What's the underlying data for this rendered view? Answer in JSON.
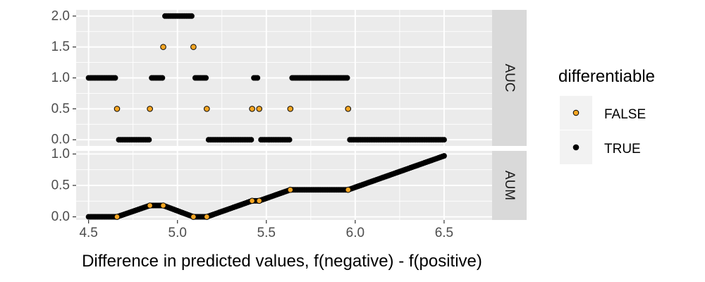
{
  "chart_data": {
    "type": "scatter",
    "xlabel": "Difference in predicted values, f(negative) - f(positive)",
    "ylabel": "",
    "xlim": [
      4.43,
      6.77
    ],
    "x_ticks": [
      4.5,
      5.0,
      5.5,
      6.0,
      6.5
    ],
    "x_tick_labels": [
      "4.5",
      "5.0",
      "5.5",
      "6.0",
      "6.5"
    ],
    "colors": {
      "panel_bg": "#ebebeb",
      "grid": "#ffffff",
      "strip_bg": "#d9d9d9",
      "false_fill": "#f5a623",
      "true_fill": "#000000"
    },
    "legend": {
      "title": "differentiable",
      "entries": [
        {
          "label": "FALSE",
          "key": "false"
        },
        {
          "label": "TRUE",
          "key": "true"
        }
      ]
    },
    "panels": [
      {
        "name": "AUC",
        "strip_label": "AUC",
        "ylim": [
          -0.1,
          2.1
        ],
        "y_ticks": [
          0,
          0.5,
          1,
          1.5,
          2
        ],
        "y_tick_labels": [
          "0.0",
          "0.5",
          "1.0",
          "1.5",
          "2.0"
        ],
        "breaks": [
          4.66,
          4.845,
          4.92,
          5.09,
          5.165,
          5.42,
          5.46,
          5.635,
          5.96
        ],
        "segments": [
          {
            "x0": 4.5,
            "x1": 4.66,
            "y": 1
          },
          {
            "x0": 4.66,
            "x1": 4.845,
            "y": 0
          },
          {
            "x0": 4.845,
            "x1": 4.92,
            "y": 1
          },
          {
            "x0": 4.92,
            "x1": 5.09,
            "y": 2
          },
          {
            "x0": 5.09,
            "x1": 5.165,
            "y": 1
          },
          {
            "x0": 5.165,
            "x1": 5.42,
            "y": 0
          },
          {
            "x0": 5.42,
            "x1": 5.46,
            "y": 1
          },
          {
            "x0": 5.46,
            "x1": 5.635,
            "y": 0
          },
          {
            "x0": 5.635,
            "x1": 5.96,
            "y": 1
          },
          {
            "x0": 5.96,
            "x1": 6.5,
            "y": 0
          }
        ],
        "false_points": [
          {
            "x": 4.66,
            "y": 0.5
          },
          {
            "x": 4.845,
            "y": 0.5
          },
          {
            "x": 4.92,
            "y": 1.5
          },
          {
            "x": 5.09,
            "y": 1.5
          },
          {
            "x": 5.165,
            "y": 0.5
          },
          {
            "x": 5.42,
            "y": 0.5
          },
          {
            "x": 5.46,
            "y": 0.5
          },
          {
            "x": 5.635,
            "y": 0.5
          },
          {
            "x": 5.96,
            "y": 0.5
          }
        ]
      },
      {
        "name": "AUM",
        "strip_label": "AUM",
        "ylim": [
          -0.05,
          1.05
        ],
        "y_ticks": [
          0,
          0.5,
          1
        ],
        "y_tick_labels": [
          "0.0",
          "0.5",
          "1.0"
        ],
        "breaks": [
          4.66,
          4.845,
          4.92,
          5.09,
          5.165,
          5.42,
          5.46,
          5.635,
          5.96
        ],
        "path": [
          {
            "x": 4.5,
            "y": 0
          },
          {
            "x": 4.66,
            "y": 0
          },
          {
            "x": 4.845,
            "y": 0.18
          },
          {
            "x": 4.92,
            "y": 0.18
          },
          {
            "x": 5.09,
            "y": 0
          },
          {
            "x": 5.165,
            "y": 0
          },
          {
            "x": 5.42,
            "y": 0.255
          },
          {
            "x": 5.46,
            "y": 0.255
          },
          {
            "x": 5.635,
            "y": 0.43
          },
          {
            "x": 5.96,
            "y": 0.43
          },
          {
            "x": 6.5,
            "y": 0.97
          }
        ],
        "false_points": [
          {
            "x": 4.66,
            "y": 0
          },
          {
            "x": 4.845,
            "y": 0.18
          },
          {
            "x": 4.92,
            "y": 0.18
          },
          {
            "x": 5.09,
            "y": 0
          },
          {
            "x": 5.165,
            "y": 0
          },
          {
            "x": 5.42,
            "y": 0.255
          },
          {
            "x": 5.46,
            "y": 0.255
          },
          {
            "x": 5.635,
            "y": 0.43
          },
          {
            "x": 5.96,
            "y": 0.43
          }
        ]
      }
    ]
  }
}
